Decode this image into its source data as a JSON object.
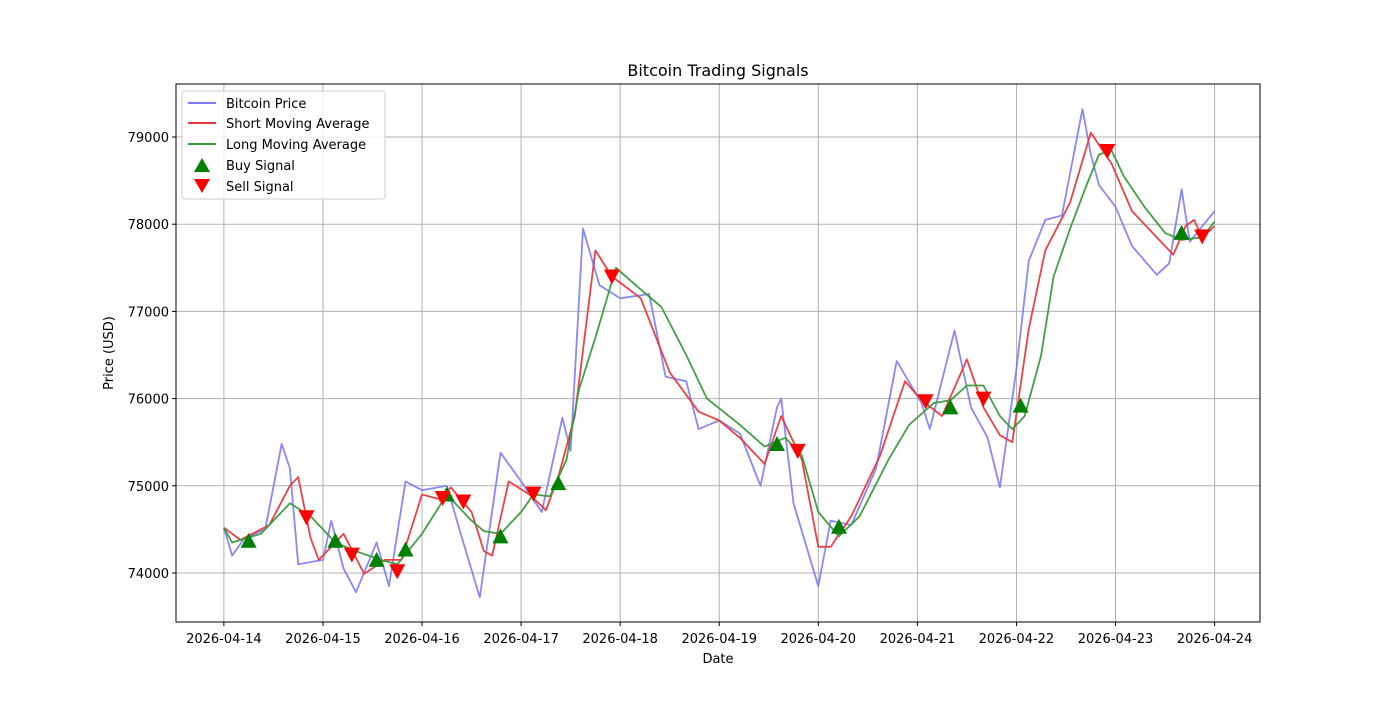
{
  "chart_data": {
    "type": "line",
    "title": "Bitcoin Trading Signals",
    "xlabel": "Date",
    "ylabel": "Price (USD)",
    "x_unit": "hours since 2026-04-14 00:00",
    "xlim": [
      -11.6,
      251
    ],
    "ylim": [
      73438,
      79608
    ],
    "grid": true,
    "legend_position": "top-left",
    "x_ticks": [
      {
        "value": 0,
        "label": "2026-04-14"
      },
      {
        "value": 24,
        "label": "2026-04-15"
      },
      {
        "value": 48,
        "label": "2026-04-16"
      },
      {
        "value": 72,
        "label": "2026-04-17"
      },
      {
        "value": 96,
        "label": "2026-04-18"
      },
      {
        "value": 120,
        "label": "2026-04-19"
      },
      {
        "value": 144,
        "label": "2026-04-20"
      },
      {
        "value": 168,
        "label": "2026-04-21"
      },
      {
        "value": 192,
        "label": "2026-04-22"
      },
      {
        "value": 216,
        "label": "2026-04-23"
      },
      {
        "value": 240,
        "label": "2026-04-24"
      }
    ],
    "y_ticks": [
      {
        "value": 74000,
        "label": "74000"
      },
      {
        "value": 75000,
        "label": "75000"
      },
      {
        "value": 76000,
        "label": "76000"
      },
      {
        "value": 77000,
        "label": "77000"
      },
      {
        "value": 78000,
        "label": "78000"
      },
      {
        "value": 79000,
        "label": "79000"
      }
    ],
    "series": [
      {
        "name": "Bitcoin Price",
        "color": "#7b7bf5",
        "x": [
          0,
          2,
          5,
          10,
          14,
          16,
          18,
          24,
          26,
          29,
          32,
          37,
          40,
          44,
          48,
          54,
          58,
          62,
          67,
          72,
          77,
          82,
          84,
          87,
          91,
          96,
          103,
          107,
          112,
          115,
          120,
          125,
          130,
          134,
          135,
          138,
          144,
          147,
          152,
          158,
          163,
          169,
          171,
          177,
          181,
          185,
          188,
          192,
          195,
          199,
          203,
          208,
          210,
          212,
          216,
          220,
          226,
          229,
          232,
          234,
          240
        ],
        "y": [
          74520,
          74200,
          74400,
          74500,
          75480,
          75200,
          74100,
          74150,
          74600,
          74050,
          73780,
          74350,
          73850,
          75050,
          74950,
          75000,
          74350,
          73720,
          75380,
          75050,
          74700,
          75780,
          75400,
          77950,
          77300,
          77150,
          77200,
          76250,
          76200,
          75650,
          75750,
          75600,
          75000,
          75900,
          76000,
          74800,
          73850,
          74600,
          74550,
          75200,
          76430,
          75950,
          75650,
          76780,
          75900,
          75550,
          74980,
          76350,
          77580,
          78050,
          78100,
          79320,
          78800,
          78450,
          78200,
          77750,
          77420,
          77550,
          78400,
          77800,
          78150
        ]
      },
      {
        "name": "Short Moving Average",
        "color": "#e8383d",
        "x": [
          0,
          4,
          11,
          16,
          18,
          21,
          23,
          29,
          34,
          39,
          43,
          48,
          52,
          55,
          60,
          63,
          65,
          69,
          74,
          78,
          81,
          85,
          90,
          94,
          101,
          108,
          115,
          120,
          125,
          131,
          135,
          140,
          144,
          147,
          152,
          159,
          165,
          169,
          174,
          180,
          184,
          188,
          191,
          195,
          199,
          205,
          210,
          215,
          220,
          223,
          227,
          230,
          233,
          235,
          237,
          240
        ],
        "y": [
          74520,
          74380,
          74550,
          75000,
          75100,
          74400,
          74150,
          74450,
          73990,
          74150,
          74150,
          74900,
          74850,
          74980,
          74700,
          74250,
          74200,
          75050,
          74900,
          74720,
          75100,
          75800,
          77700,
          77400,
          77150,
          76300,
          75850,
          75750,
          75550,
          75250,
          75800,
          75300,
          74300,
          74300,
          74650,
          75350,
          76200,
          75980,
          75800,
          76450,
          75900,
          75580,
          75500,
          76800,
          77700,
          78250,
          79050,
          78700,
          78150,
          78000,
          77800,
          77650,
          77980,
          78050,
          77850,
          77980
        ]
      },
      {
        "name": "Long Moving Average",
        "color": "#3a9a3a",
        "x": [
          0,
          2,
          9,
          16,
          21,
          27,
          32,
          38,
          42,
          48,
          54,
          60,
          63,
          67,
          72,
          75,
          79,
          83,
          86,
          90,
          95,
          101,
          106,
          112,
          117,
          125,
          131,
          136,
          140,
          144,
          149,
          154,
          161,
          166,
          172,
          176,
          180,
          184,
          188,
          191,
          194,
          198,
          201,
          205,
          209,
          212,
          215,
          218,
          223,
          228,
          232,
          237,
          240
        ],
        "y": [
          74520,
          74350,
          74450,
          74800,
          74650,
          74350,
          74250,
          74150,
          74100,
          74450,
          74900,
          74600,
          74480,
          74450,
          74700,
          74900,
          74880,
          75300,
          76100,
          76700,
          77500,
          77250,
          77050,
          76500,
          76000,
          75700,
          75450,
          75550,
          75350,
          74700,
          74420,
          74650,
          75300,
          75700,
          75950,
          75980,
          76150,
          76150,
          75800,
          75650,
          75800,
          76500,
          77400,
          77950,
          78450,
          78800,
          78850,
          78550,
          78200,
          77900,
          77820,
          77850,
          78030
        ]
      }
    ],
    "markers": [
      {
        "name": "Buy Signal",
        "color": "#008000",
        "shape": "triangle-up",
        "x": [
          6,
          27,
          37,
          44,
          54,
          67,
          81,
          134,
          149,
          176,
          193,
          232
        ],
        "y": [
          74370,
          74370,
          74150,
          74270,
          74900,
          74420,
          75030,
          75480,
          74530,
          75900,
          75920,
          77900
        ]
      },
      {
        "name": "Sell Signal",
        "color": "#ff0000",
        "shape": "triangle-down",
        "x": [
          20,
          31,
          42,
          53,
          58,
          75,
          94,
          139,
          170,
          184,
          214,
          237
        ],
        "y": [
          74640,
          74210,
          74020,
          74860,
          74820,
          74910,
          77400,
          75400,
          75970,
          76000,
          78840,
          77860
        ]
      }
    ]
  }
}
